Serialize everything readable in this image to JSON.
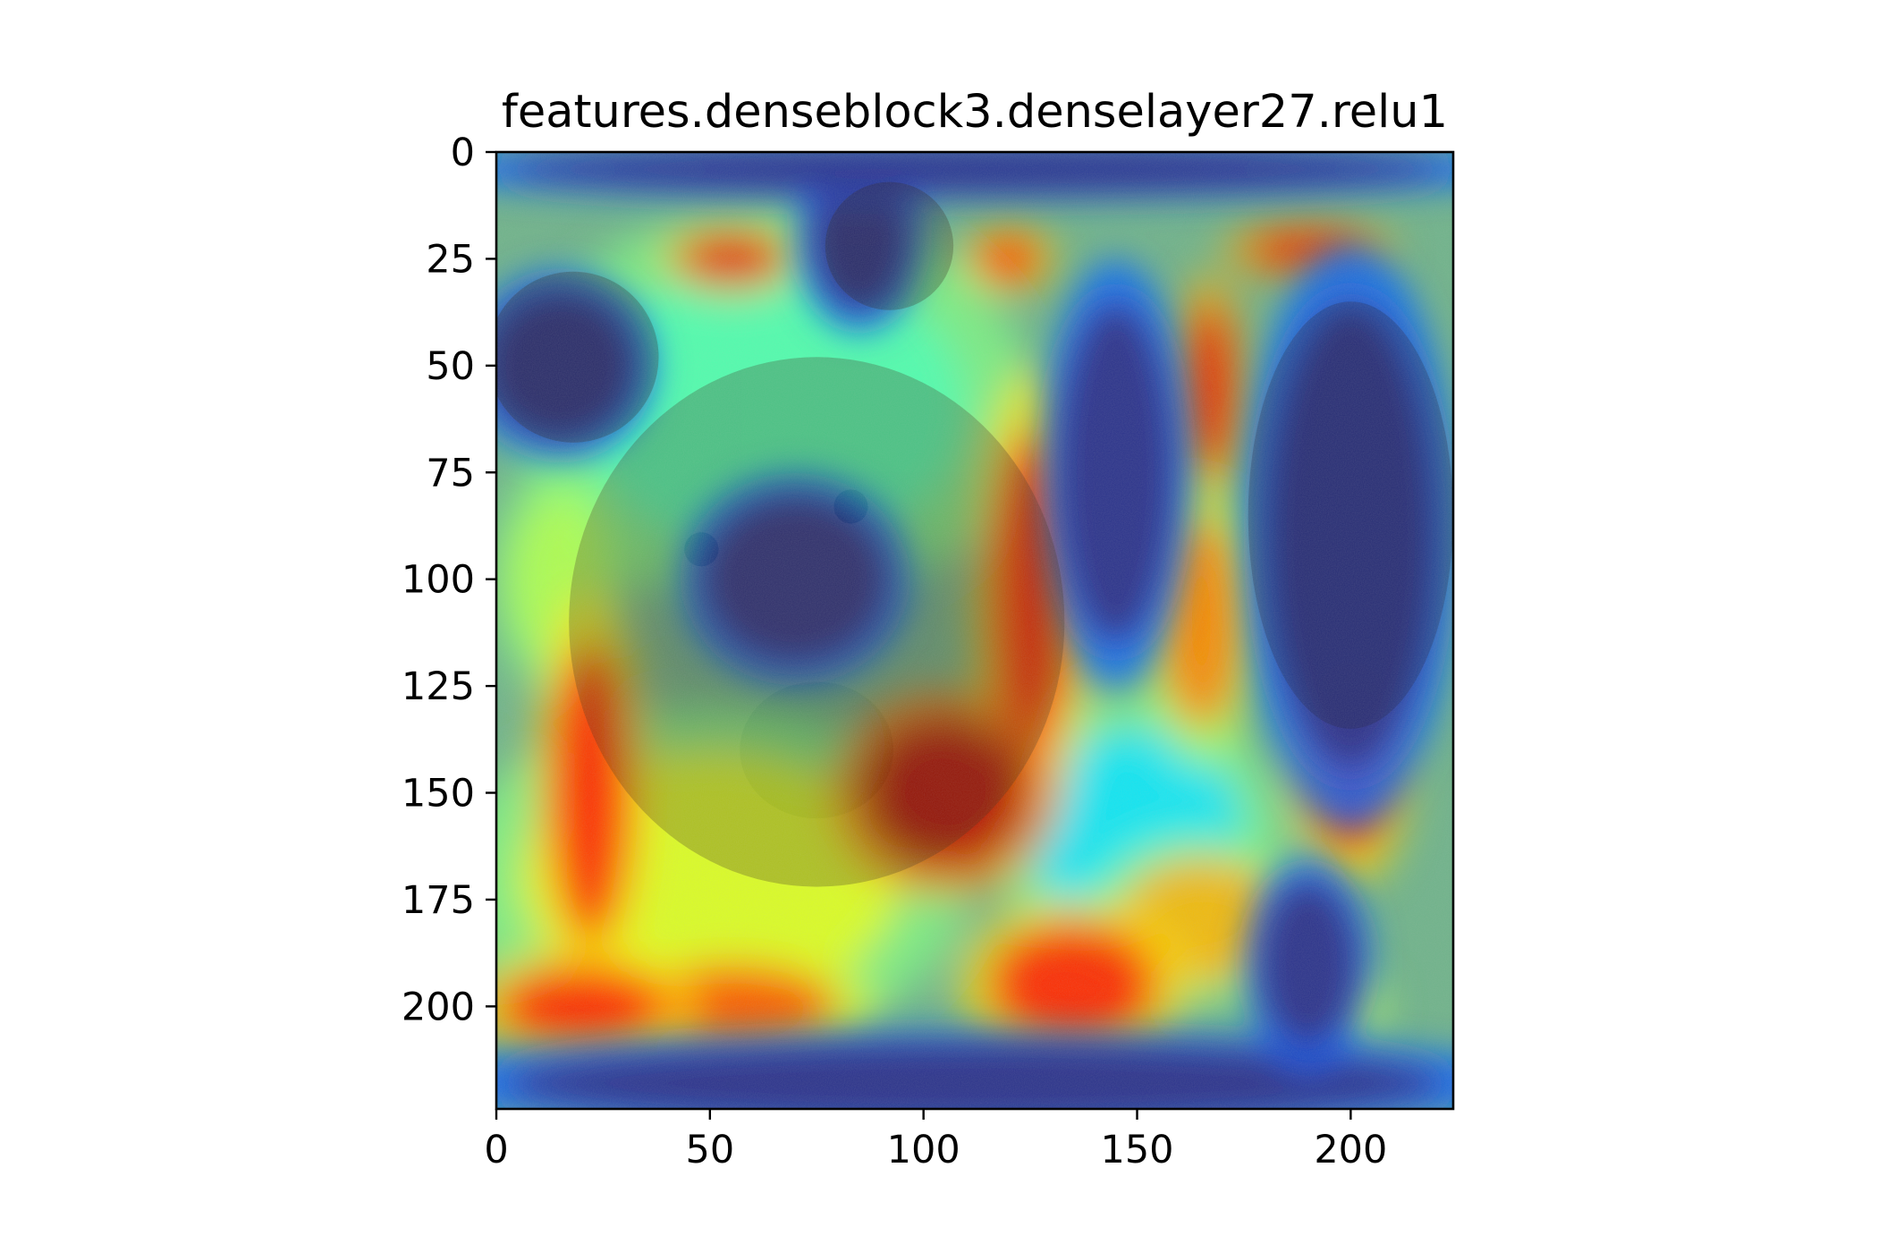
{
  "chart_data": {
    "type": "heatmap",
    "title": "features.denseblock3.denselayer27.relu1",
    "xlabel": "",
    "ylabel": "",
    "image_size": [
      224,
      224
    ],
    "xlim": [
      0,
      224
    ],
    "ylim": [
      224,
      0
    ],
    "x_ticks": [
      0,
      50,
      100,
      150,
      200
    ],
    "y_ticks": [
      0,
      25,
      50,
      75,
      100,
      125,
      150,
      175,
      200
    ],
    "colormap": "jet",
    "overlay_alpha": 0.55,
    "background_image": "brown-bear-photo",
    "grid": false,
    "activation_blobs": [
      {
        "cx": 105,
        "cy": 150,
        "rx": 20,
        "ry": 18,
        "level": 0.95
      },
      {
        "cx": 125,
        "cy": 105,
        "rx": 10,
        "ry": 40,
        "level": 0.85
      },
      {
        "cx": 167,
        "cy": 55,
        "rx": 6,
        "ry": 20,
        "level": 0.9
      },
      {
        "cx": 165,
        "cy": 110,
        "rx": 10,
        "ry": 25,
        "level": 0.75
      },
      {
        "cx": 22,
        "cy": 150,
        "rx": 10,
        "ry": 35,
        "level": 0.85
      },
      {
        "cx": 200,
        "cy": 145,
        "rx": 10,
        "ry": 20,
        "level": 0.85
      },
      {
        "cx": 20,
        "cy": 200,
        "rx": 20,
        "ry": 10,
        "level": 0.85
      },
      {
        "cx": 55,
        "cy": 200,
        "rx": 25,
        "ry": 10,
        "level": 0.8
      },
      {
        "cx": 135,
        "cy": 195,
        "rx": 20,
        "ry": 15,
        "level": 0.85
      },
      {
        "cx": 55,
        "cy": 25,
        "rx": 12,
        "ry": 6,
        "level": 0.9
      },
      {
        "cx": 120,
        "cy": 25,
        "rx": 8,
        "ry": 6,
        "level": 0.85
      },
      {
        "cx": 190,
        "cy": 23,
        "rx": 15,
        "ry": 5,
        "level": 0.9
      },
      {
        "cx": 50,
        "cy": 170,
        "rx": 45,
        "ry": 30,
        "level": 0.6
      },
      {
        "cx": 15,
        "cy": 100,
        "rx": 12,
        "ry": 20,
        "level": 0.55
      },
      {
        "cx": 65,
        "cy": 60,
        "rx": 45,
        "ry": 35,
        "level": 0.45
      },
      {
        "cx": 150,
        "cy": 160,
        "rx": 25,
        "ry": 25,
        "level": 0.35
      },
      {
        "cx": 200,
        "cy": 200,
        "rx": 6,
        "ry": 6,
        "level": 0.6
      },
      {
        "cx": 165,
        "cy": 180,
        "rx": 20,
        "ry": 15,
        "level": 0.7
      }
    ],
    "cold_regions": [
      {
        "cx": 145,
        "cy": 75,
        "rx": 14,
        "ry": 40
      },
      {
        "cx": 200,
        "cy": 90,
        "rx": 20,
        "ry": 55
      },
      {
        "cx": 85,
        "cy": 20,
        "rx": 12,
        "ry": 18
      },
      {
        "cx": 15,
        "cy": 50,
        "rx": 18,
        "ry": 18
      },
      {
        "cx": 112,
        "cy": 218,
        "rx": 110,
        "ry": 10
      },
      {
        "cx": 112,
        "cy": 4,
        "rx": 110,
        "ry": 6
      },
      {
        "cx": 70,
        "cy": 100,
        "rx": 22,
        "ry": 20
      },
      {
        "cx": 190,
        "cy": 190,
        "rx": 12,
        "ry": 20
      }
    ]
  }
}
